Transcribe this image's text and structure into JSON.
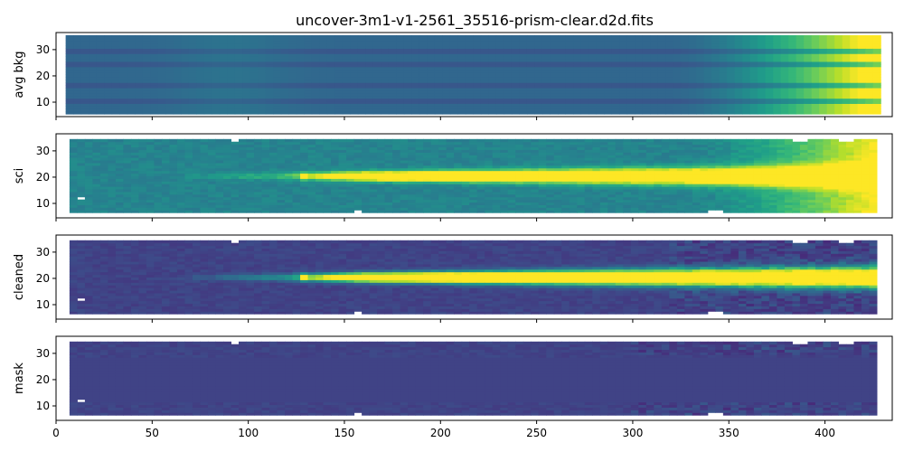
{
  "title": "uncover-3m1-v1-2561_35516-prism-clear.d2d.fits",
  "chart_data": [
    {
      "type": "heatmap",
      "ylabel": "avg bkg",
      "xlim": [
        0,
        435
      ],
      "ylim": [
        4.5,
        36.5
      ],
      "yticks": [
        10,
        20,
        30
      ],
      "xtick_labels_visible": false,
      "colormap": "viridis",
      "data_x_range": [
        5,
        427
      ],
      "data_y_range": [
        5.5,
        35.5
      ]
    },
    {
      "type": "heatmap",
      "ylabel": "sci",
      "xlim": [
        0,
        435
      ],
      "ylim": [
        4.5,
        36.5
      ],
      "yticks": [
        10,
        20,
        30
      ],
      "xtick_labels_visible": false,
      "colormap": "viridis",
      "data_x_range": [
        7,
        427
      ],
      "data_y_range": [
        6.5,
        34.5
      ],
      "trace_center_y": 20.5
    },
    {
      "type": "heatmap",
      "ylabel": "cleaned",
      "xlim": [
        0,
        435
      ],
      "ylim": [
        4.5,
        36.5
      ],
      "yticks": [
        10,
        20,
        30
      ],
      "xtick_labels_visible": false,
      "colormap": "viridis",
      "data_x_range": [
        7,
        427
      ],
      "data_y_range": [
        6.5,
        34.5
      ],
      "trace_center_y": 20.5
    },
    {
      "type": "heatmap",
      "ylabel": "mask",
      "xlim": [
        0,
        435
      ],
      "ylim": [
        4.5,
        36.5
      ],
      "yticks": [
        10,
        20,
        30
      ],
      "xticks": [
        0,
        50,
        100,
        150,
        200,
        250,
        300,
        350,
        400
      ],
      "xtick_labels_visible": true,
      "colormap": "viridis",
      "data_x_range": [
        7,
        427
      ],
      "data_y_range": [
        6.5,
        34.5
      ]
    }
  ],
  "colors": {
    "dark": "#3b4f8a",
    "mid": "#2a8e8c",
    "bright": "#fde725",
    "axis": "#000000"
  }
}
